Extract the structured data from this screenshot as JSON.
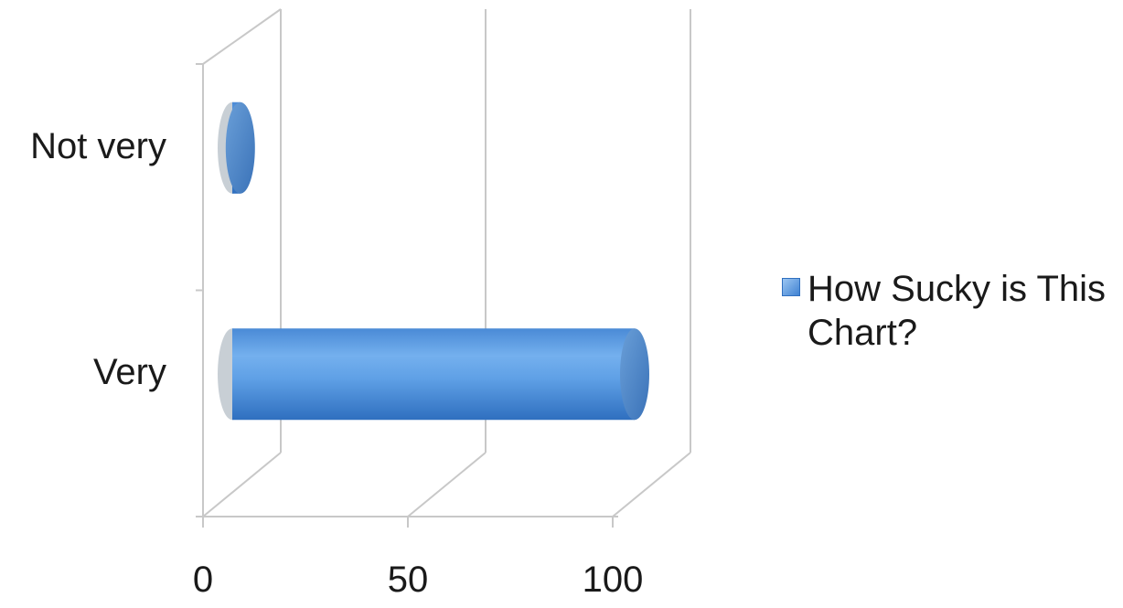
{
  "chart_data": {
    "type": "bar",
    "orientation": "horizontal",
    "style": "3d-cylinder",
    "categories": [
      "Not very",
      "Very"
    ],
    "series": [
      {
        "name": "How Sucky is This Chart?",
        "values": [
          2,
          100
        ]
      }
    ],
    "xlim": [
      0,
      100
    ],
    "x_ticks": [
      "0",
      "50",
      "100"
    ],
    "grid": true,
    "legend_position": "right",
    "colors": {
      "bar": "#4a8fde",
      "bar_light": "#7fb6ee",
      "bar_dark": "#2f6fbf",
      "grid": "#c8c8c8"
    }
  }
}
